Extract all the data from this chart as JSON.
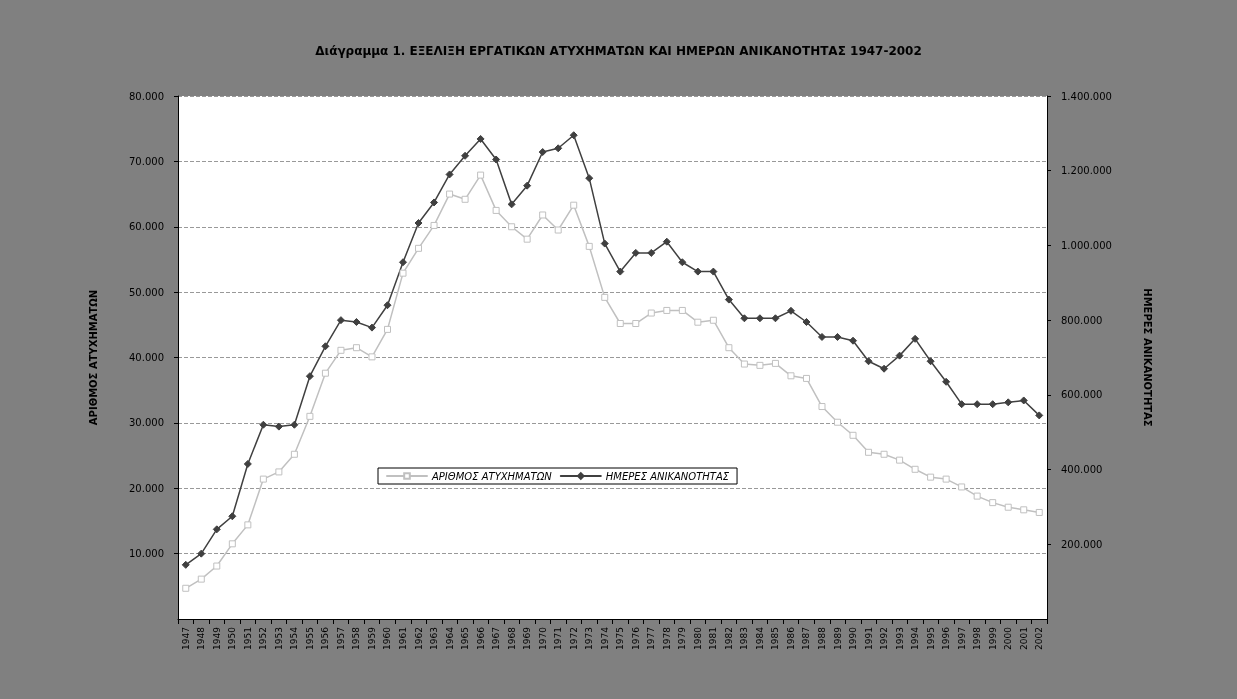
{
  "chart_data": {
    "type": "line",
    "title": "Διάγραμμα 1. ΕΞΕΛΙΞΗ ΕΡΓΑΤΙΚΩΝ ΑΤΥΧΗΜΑΤΩΝ ΚΑΙ ΗΜΕΡΩΝ ΑΝΙΚΑΝΟΤΗΤΑΣ 1947-2002",
    "ylabel": "ΑΡΙΘΜΟΣ ΑΤΥΧΗΜΑΤΩΝ",
    "y2label": "ΗΜΕΡΕΣ ΑΝΙΚΑΝΟΤΗΤΑΣ",
    "categories": [
      "1947",
      "1948",
      "1949",
      "1950",
      "1951",
      "1952",
      "1953",
      "1954",
      "1955",
      "1956",
      "1957",
      "1958",
      "1959",
      "1960",
      "1961",
      "1962",
      "1963",
      "1964",
      "1965",
      "1966",
      "1967",
      "1968",
      "1969",
      "1970",
      "1971",
      "1972",
      "1973",
      "1974",
      "1975",
      "1976",
      "1977",
      "1978",
      "1979",
      "1980",
      "1981",
      "1982",
      "1983",
      "1984",
      "1985",
      "1986",
      "1987",
      "1988",
      "1989",
      "1990",
      "1991",
      "1992",
      "1993",
      "1994",
      "1995",
      "1996",
      "1997",
      "1998",
      "1999",
      "2000",
      "2001",
      "2002"
    ],
    "series": [
      {
        "name": "ΑΡΙΘΜΟΣ ΑΤΥΧΗΜΑΤΩΝ",
        "color": "#c0c0c0",
        "marker": "square",
        "values": [
          4700,
          6100,
          8100,
          11500,
          14400,
          21400,
          22500,
          25200,
          31000,
          37600,
          41100,
          41500,
          40100,
          44300,
          52900,
          56700,
          60200,
          65000,
          64200,
          67900,
          62500,
          60000,
          58100,
          61800,
          59500,
          63300,
          57000,
          49200,
          45200,
          45200,
          46800,
          47200,
          47200,
          45400,
          45700,
          41500,
          39000,
          38800,
          39100,
          37200,
          36800,
          32500,
          30100,
          28100,
          25500,
          25200,
          24300,
          22900,
          21700,
          21400,
          20200,
          18800,
          17800,
          17100,
          16700,
          16300
        ]
      },
      {
        "name": "ΗΜΕΡΕΣ ΑΝΙΚΑΝΟΤΗΤΑΣ",
        "color": "#404040",
        "marker": "diamond",
        "axis": "y2",
        "values": [
          145000,
          175000,
          240000,
          275000,
          415000,
          520000,
          515000,
          520000,
          650000,
          730000,
          800000,
          795000,
          780000,
          840000,
          955000,
          1060000,
          1115000,
          1190000,
          1240000,
          1285000,
          1230000,
          1110000,
          1160000,
          1250000,
          1260000,
          1295000,
          1180000,
          1005000,
          930000,
          980000,
          980000,
          1010000,
          955000,
          930000,
          930000,
          855000,
          805000,
          805000,
          805000,
          825000,
          795000,
          755000,
          755000,
          745000,
          690000,
          670000,
          705000,
          750000,
          690000,
          635000,
          575000,
          575000,
          575000,
          580000,
          585000,
          545000
        ]
      }
    ],
    "ylim": [
      0,
      80000
    ],
    "yticks": [
      {
        "value": 10000,
        "label": "10.000"
      },
      {
        "value": 20000,
        "label": "20.000"
      },
      {
        "value": 30000,
        "label": "30.000"
      },
      {
        "value": 40000,
        "label": "40.000"
      },
      {
        "value": 50000,
        "label": "50.000"
      },
      {
        "value": 60000,
        "label": "60.000"
      },
      {
        "value": 70000,
        "label": "70.000"
      },
      {
        "value": 80000,
        "label": "80.000"
      }
    ],
    "y2lim": [
      0,
      1400000
    ],
    "y2ticks": [
      {
        "value": 200000,
        "label": "200.000"
      },
      {
        "value": 400000,
        "label": "400.000"
      },
      {
        "value": 600000,
        "label": "600.000"
      },
      {
        "value": 800000,
        "label": "800.000"
      },
      {
        "value": 1000000,
        "label": "1.000.000"
      },
      {
        "value": 1200000,
        "label": "1.200.000"
      },
      {
        "value": 1400000,
        "label": "1.400.000"
      }
    ],
    "grid": "y",
    "legend": "bottom",
    "line_style": "solid"
  }
}
